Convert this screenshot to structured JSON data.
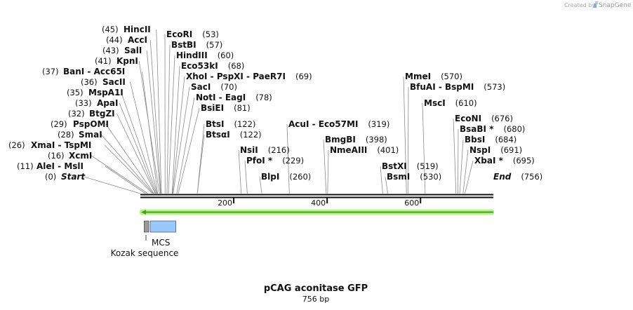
{
  "credit": {
    "prefix": "Created by",
    "brand": "SnapGene"
  },
  "map": {
    "title": "pCAG aconitase GFP",
    "subtitle": "756 bp",
    "length": 756,
    "ticks": [
      200,
      400,
      600
    ],
    "sites": [
      {
        "name": "Start",
        "pos": 0,
        "italic": true
      },
      {
        "name": "End",
        "pos": 756,
        "italic": true
      },
      {
        "name": "AleI  -  MslI",
        "pos": 11
      },
      {
        "name": "XcmI",
        "pos": 16
      },
      {
        "name": "XmaI  -  TspMI",
        "pos": 26
      },
      {
        "name": "SmaI",
        "pos": 28
      },
      {
        "name": "PspOMI",
        "pos": 29
      },
      {
        "name": "BtgZI",
        "pos": 32
      },
      {
        "name": "ApaI",
        "pos": 33
      },
      {
        "name": "MspA1I",
        "pos": 35
      },
      {
        "name": "SacII",
        "pos": 36
      },
      {
        "name": "BanI  -  Acc65I",
        "pos": 37
      },
      {
        "name": "KpnI",
        "pos": 41
      },
      {
        "name": "SalI",
        "pos": 43
      },
      {
        "name": "AccI",
        "pos": 44
      },
      {
        "name": "HincII",
        "pos": 45
      },
      {
        "name": "EcoRI",
        "pos": 53
      },
      {
        "name": "BstBI",
        "pos": 57
      },
      {
        "name": "HindIII",
        "pos": 60
      },
      {
        "name": "Eco53kI",
        "pos": 68
      },
      {
        "name": "XhoI  -  PspXI  -  PaeR7I",
        "pos": 69
      },
      {
        "name": "SacI",
        "pos": 70
      },
      {
        "name": "NotI  -  EagI",
        "pos": 78
      },
      {
        "name": "BsiEI",
        "pos": 81
      },
      {
        "name": "BtsI",
        "pos": 122
      },
      {
        "name": "BtsαI",
        "pos": 122
      },
      {
        "name": "NsiI",
        "pos": 216
      },
      {
        "name": "PfoI *",
        "pos": 229
      },
      {
        "name": "BlpI",
        "pos": 260
      },
      {
        "name": "AcuI  -  Eco57MI",
        "pos": 319
      },
      {
        "name": "BmgBI",
        "pos": 398
      },
      {
        "name": "NmeAIII",
        "pos": 401
      },
      {
        "name": "BstXI",
        "pos": 519
      },
      {
        "name": "BsmI",
        "pos": 530
      },
      {
        "name": "MmeI",
        "pos": 570
      },
      {
        "name": "BfuAI  -  BspMI",
        "pos": 573
      },
      {
        "name": "MscI",
        "pos": 610
      },
      {
        "name": "EcoNI",
        "pos": 676
      },
      {
        "name": "BsaBI *",
        "pos": 680
      },
      {
        "name": "BbsI",
        "pos": 684
      },
      {
        "name": "NspI",
        "pos": 691
      },
      {
        "name": "XbaI *",
        "pos": 695
      }
    ],
    "features": [
      {
        "name": "Kozak sequence",
        "start": 8,
        "end": 18,
        "color": "#9a9a9a"
      },
      {
        "name": "MCS",
        "start": 21,
        "end": 76,
        "color": "#99c8ff"
      }
    ],
    "orf": {
      "start": 0,
      "end": 756,
      "color": "#49a318",
      "glow": "#b8f28c",
      "direction": "reverse"
    }
  }
}
